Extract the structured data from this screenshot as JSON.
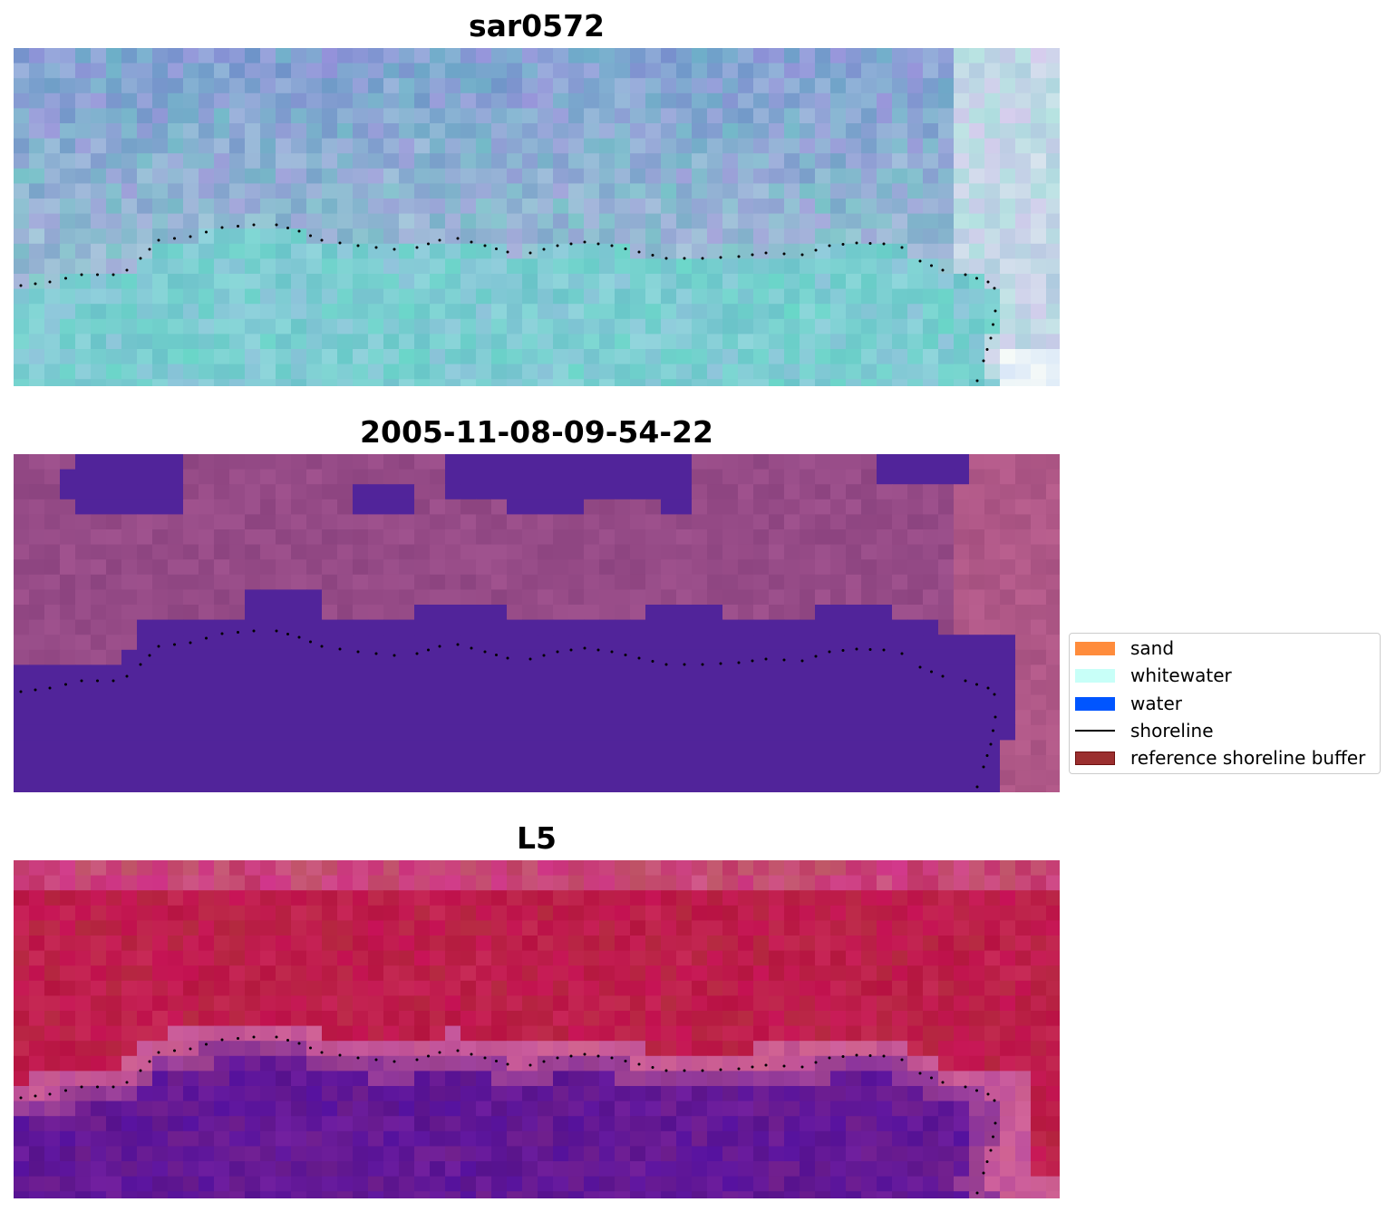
{
  "panels": [
    {
      "title": "sar0572",
      "style": "sar"
    },
    {
      "title": "2005-11-08-09-54-22",
      "style": "classified"
    },
    {
      "title": "L5",
      "style": "index"
    }
  ],
  "legend": {
    "items": [
      {
        "label": "sand",
        "color": "#ff8c3c",
        "kind": "patch"
      },
      {
        "label": "whitewater",
        "color": "#c8fff8",
        "kind": "patch"
      },
      {
        "label": "water",
        "color": "#0055ff",
        "kind": "patch"
      },
      {
        "label": "shoreline",
        "color": "#000000",
        "kind": "line"
      },
      {
        "label": "reference shoreline buffer",
        "color": "#9b2f2f",
        "edge": "#6e1010",
        "kind": "patch"
      }
    ]
  },
  "colors": {
    "shoreline_dots": "#000000",
    "water_class": "#51249a",
    "sand_background": "#9a4a8e",
    "index_water": "#6b1898",
    "index_land": "#c01a45"
  }
}
